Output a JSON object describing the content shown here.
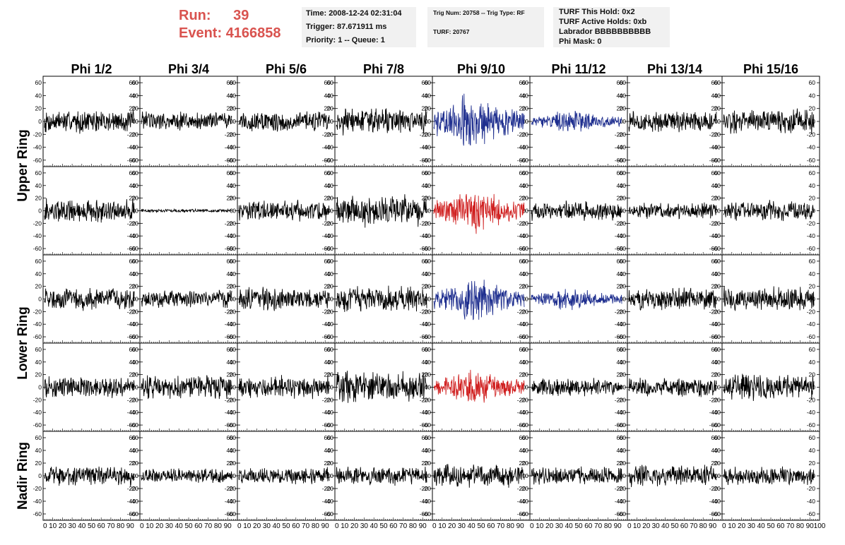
{
  "header": {
    "run_label": "Run:",
    "run_value": "39",
    "event_label": "Event:",
    "event_value": "4166858",
    "accent_color": "#d9534f",
    "box1": {
      "time": "Time: 2008-12-24 02:31:04",
      "trigger": "Trigger: 87.671911 ms",
      "priority": "Priority: 1 -- Queue: 1"
    },
    "box2": {
      "trig": "Trig Num: 20758 -- Trig Type: RF",
      "turf": "TURF: 20767"
    },
    "box3": {
      "hold": "TURF This Hold: 0x2",
      "active": "TURF Active Holds: 0xb",
      "labrador": "Labrador BBBBBBBBBB",
      "phimask": "Phi Mask: 0"
    }
  },
  "chart_data": {
    "type": "line",
    "columns": [
      "Phi 1/2",
      "Phi 3/4",
      "Phi 5/6",
      "Phi 7/8",
      "Phi 9/10",
      "Phi 11/12",
      "Phi 13/14",
      "Phi 15/16"
    ],
    "ring_labels": [
      {
        "label": "Upper Ring",
        "rows": [
          0,
          1
        ]
      },
      {
        "label": "Lower Ring",
        "rows": [
          2,
          3
        ]
      },
      {
        "label": "Nadir Ring",
        "rows": [
          4
        ]
      }
    ],
    "ylim": [
      -70,
      70
    ],
    "xlim": [
      0,
      100
    ],
    "yticks": [
      -60,
      -40,
      -20,
      0,
      20,
      40,
      60
    ],
    "yticks_nadir": [
      -60,
      -40,
      -20,
      0,
      20,
      40,
      60
    ],
    "xticks": [
      0,
      10,
      20,
      30,
      40,
      50,
      60,
      70,
      80,
      90
    ],
    "xtick_row_text": "0 10 20 30 40 50 60 70 80 90 10",
    "last_xtick_text": "100",
    "colors": {
      "normal": "#000000",
      "highlight_blue": "#1f2f8f",
      "highlight_red": "#d02020"
    },
    "panels": [
      [
        {
          "amp": 14,
          "color": "normal"
        },
        {
          "amp": 12,
          "color": "normal"
        },
        {
          "amp": 13,
          "color": "normal"
        },
        {
          "amp": 16,
          "color": "normal"
        },
        {
          "amp": 28,
          "color": "highlight_blue"
        },
        {
          "amp": 11,
          "color": "highlight_blue"
        },
        {
          "amp": 13,
          "color": "normal"
        },
        {
          "amp": 15,
          "color": "normal"
        }
      ],
      [
        {
          "amp": 15,
          "color": "normal"
        },
        {
          "amp": 2,
          "color": "normal"
        },
        {
          "amp": 13,
          "color": "normal"
        },
        {
          "amp": 20,
          "color": "normal"
        },
        {
          "amp": 22,
          "color": "highlight_red"
        },
        {
          "amp": 12,
          "color": "normal"
        },
        {
          "amp": 10,
          "color": "normal"
        },
        {
          "amp": 13,
          "color": "normal"
        }
      ],
      [
        {
          "amp": 14,
          "color": "normal"
        },
        {
          "amp": 11,
          "color": "normal"
        },
        {
          "amp": 14,
          "color": "normal"
        },
        {
          "amp": 16,
          "color": "normal"
        },
        {
          "amp": 22,
          "color": "highlight_blue"
        },
        {
          "amp": 12,
          "color": "highlight_blue"
        },
        {
          "amp": 14,
          "color": "normal"
        },
        {
          "amp": 15,
          "color": "normal"
        }
      ],
      [
        {
          "amp": 13,
          "color": "normal"
        },
        {
          "amp": 15,
          "color": "normal"
        },
        {
          "amp": 14,
          "color": "normal"
        },
        {
          "amp": 20,
          "color": "normal"
        },
        {
          "amp": 18,
          "color": "highlight_red"
        },
        {
          "amp": 11,
          "color": "normal"
        },
        {
          "amp": 12,
          "color": "normal"
        },
        {
          "amp": 16,
          "color": "normal"
        }
      ],
      [
        {
          "amp": 12,
          "color": "normal"
        },
        {
          "amp": 9,
          "color": "normal"
        },
        {
          "amp": 10,
          "color": "normal"
        },
        {
          "amp": 12,
          "color": "normal"
        },
        {
          "amp": 14,
          "color": "normal"
        },
        {
          "amp": 11,
          "color": "normal"
        },
        {
          "amp": 13,
          "color": "normal"
        },
        {
          "amp": 12,
          "color": "normal"
        }
      ]
    ]
  }
}
